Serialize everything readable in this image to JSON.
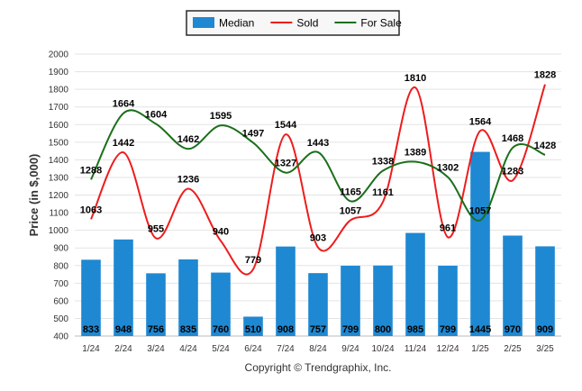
{
  "chart_data": {
    "type": "bar",
    "categories": [
      "1/24",
      "2/24",
      "3/24",
      "4/24",
      "5/24",
      "6/24",
      "7/24",
      "8/24",
      "9/24",
      "10/24",
      "11/24",
      "12/24",
      "1/25",
      "2/25",
      "3/25"
    ],
    "ylabel": "Price (in $,000)",
    "ylim": [
      400,
      2000
    ],
    "yticks": [
      400,
      500,
      600,
      700,
      800,
      900,
      1000,
      1100,
      1200,
      1300,
      1400,
      1500,
      1600,
      1700,
      1800,
      1900,
      2000
    ],
    "grid": true,
    "legend_position": "top-center",
    "series": [
      {
        "name": "Median",
        "type": "bar",
        "color": "#1e88d2",
        "values": [
          833,
          948,
          756,
          835,
          760,
          510,
          908,
          757,
          799,
          800,
          985,
          799,
          1445,
          970,
          909
        ]
      },
      {
        "name": "Sold",
        "type": "line",
        "color": "#ee1c1c",
        "values": [
          1063,
          1442,
          955,
          1236,
          940,
          779,
          1544,
          903,
          1057,
          1161,
          1810,
          961,
          1564,
          1283,
          1828
        ]
      },
      {
        "name": "For Sale",
        "type": "line",
        "color": "#1a6f1a",
        "values": [
          1288,
          1664,
          1604,
          1462,
          1595,
          1497,
          1327,
          1443,
          1165,
          1338,
          1389,
          1302,
          1057,
          1468,
          1428
        ]
      }
    ]
  },
  "footer": {
    "copyright": "Copyright © Trendgraphix, Inc."
  }
}
